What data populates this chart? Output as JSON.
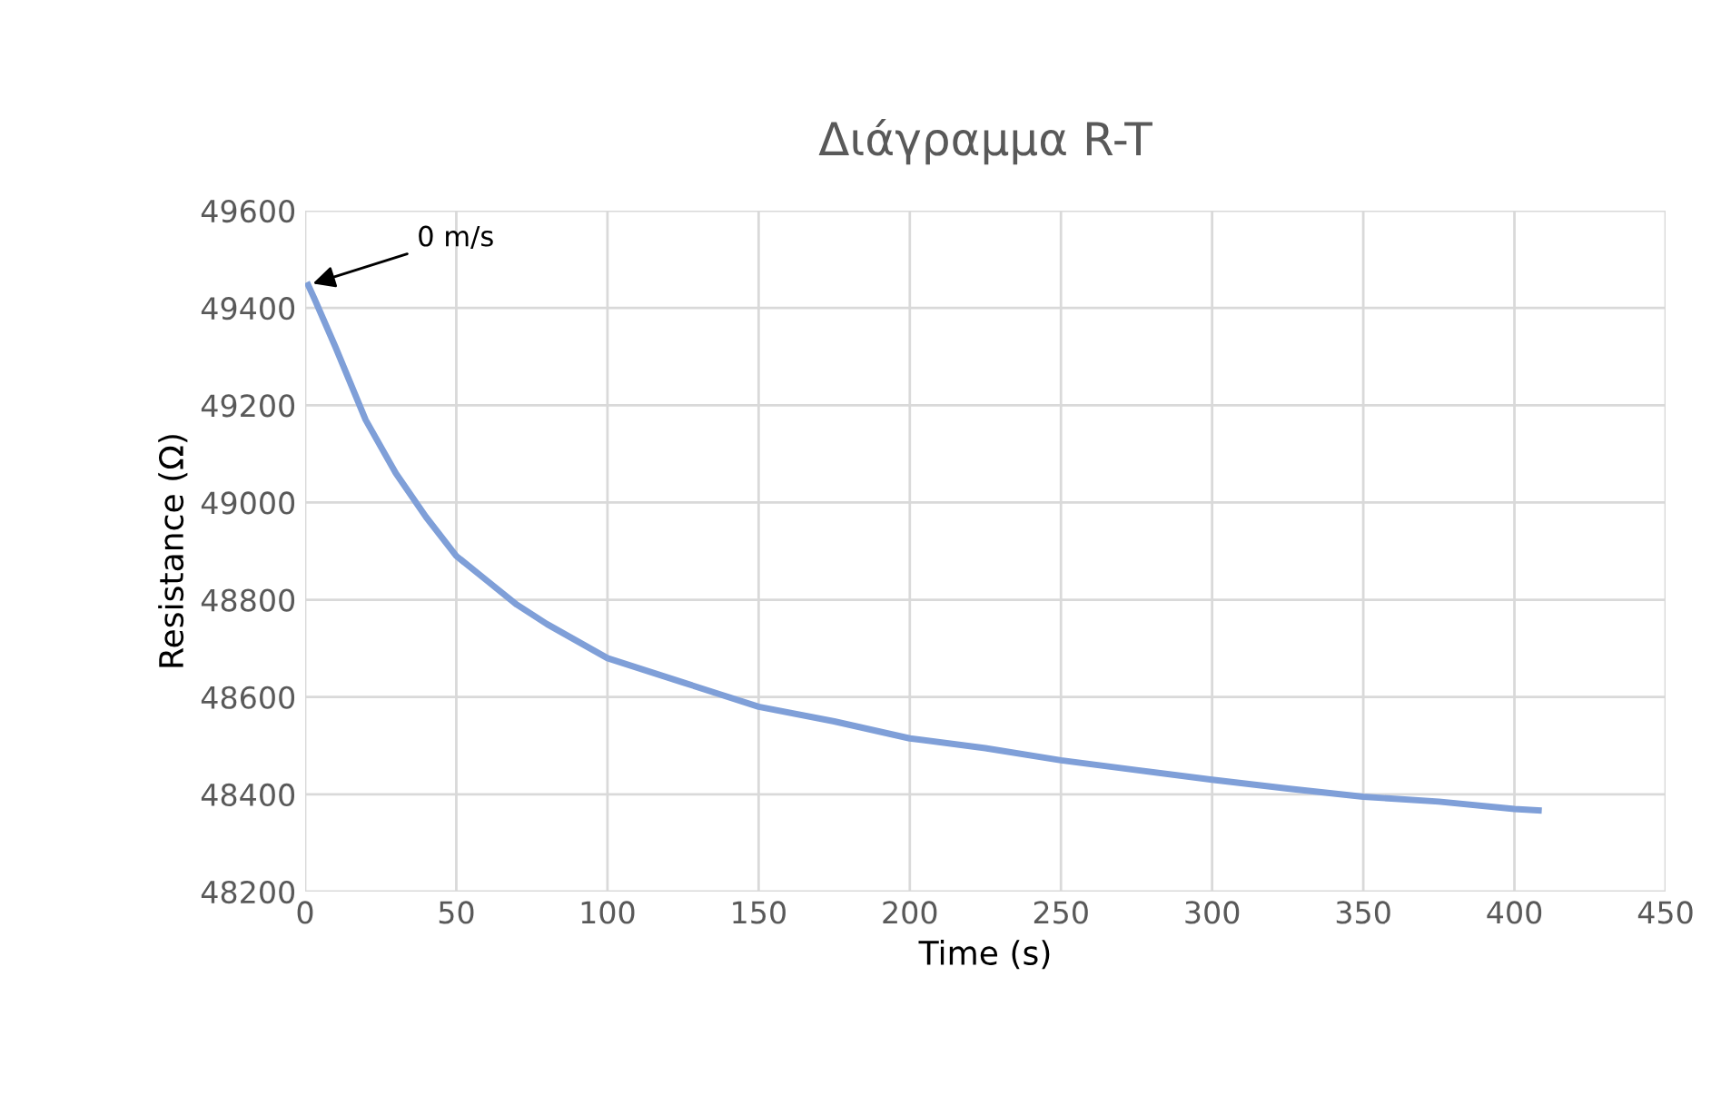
{
  "chart_data": {
    "type": "line",
    "title": "Διάγραμμα R-T",
    "xlabel": "Time (s)",
    "ylabel": "Resistance (Ω)",
    "x": [
      1,
      3,
      10,
      20,
      30,
      40,
      50,
      60,
      70,
      80,
      90,
      100,
      125,
      150,
      175,
      200,
      225,
      250,
      275,
      300,
      325,
      350,
      375,
      400,
      408
    ],
    "series": [
      {
        "color": "#7f9fd8",
        "values": [
          49447,
          49420,
          49320,
          49170,
          49060,
          48970,
          48890,
          48840,
          48790,
          48750,
          48715,
          48680,
          48630,
          48580,
          48550,
          48515,
          48495,
          48470,
          48450,
          48430,
          48412,
          48395,
          48385,
          48370,
          48367
        ]
      }
    ],
    "annotations": [
      {
        "text": "0 m/s",
        "x": 1,
        "y": 49447
      }
    ],
    "xlim": [
      0,
      450
    ],
    "xticks": [
      0,
      50,
      100,
      150,
      200,
      250,
      300,
      350,
      400,
      450
    ],
    "ylim": [
      48200,
      49600
    ],
    "yticks": [
      48200,
      48400,
      48600,
      48800,
      49000,
      49200,
      49400,
      49600
    ],
    "grid": true,
    "marker": "none",
    "line_style": "solid"
  }
}
